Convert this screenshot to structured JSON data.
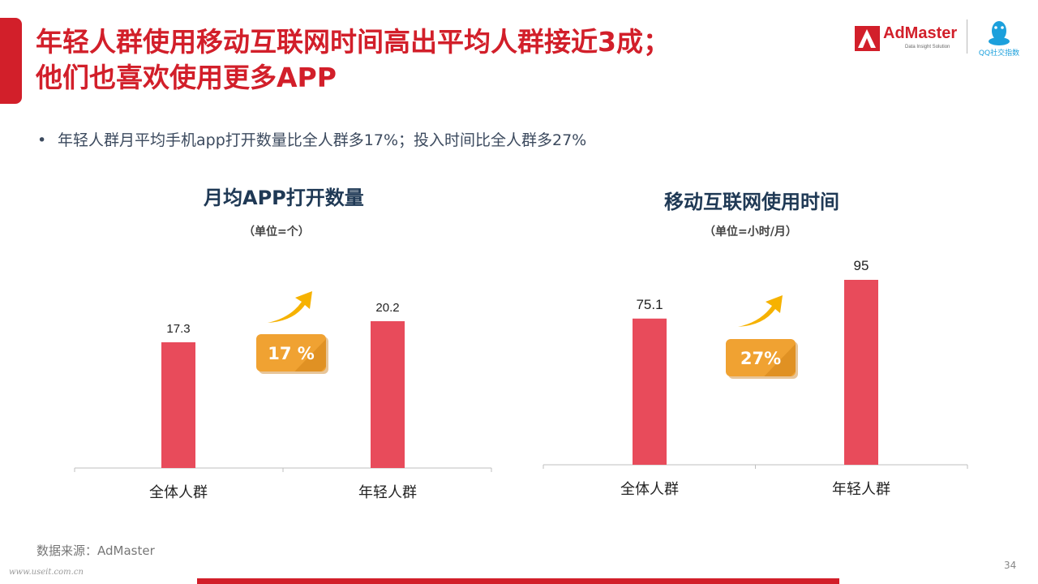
{
  "slide": {
    "title_line1": "年轻人群使用移动互联网时间高出平均人群接近3成；",
    "title_line2": "他们也喜欢使用更多APP",
    "bullet": "年轻人群月平均手机app打开数量比全人群多17%；投入时间比全人群多27%",
    "bullet_marker": "•",
    "source": "数据来源：AdMaster",
    "watermark": "www.useit.com.cn",
    "page_number": "34",
    "accent_color": "#d21f2a",
    "bar_color": "#e84b5b",
    "badge_color": "#f0a232"
  },
  "logos": {
    "admaster": "AdMaster",
    "admaster_tagline": "Data Insight Solution",
    "qq": "QQ社交指数"
  },
  "chart_data": [
    {
      "type": "bar",
      "title": "月均APP打开数量",
      "unit": "（单位=个）",
      "categories": [
        "全体人群",
        "年轻人群"
      ],
      "values": [
        17.3,
        20.2
      ],
      "value_labels": [
        "17.3",
        "20.2"
      ],
      "growth_label": "17 %",
      "ylim": [
        0,
        25
      ]
    },
    {
      "type": "bar",
      "title": "移动互联网使用时间",
      "unit": "（单位=小时/月）",
      "categories": [
        "全体人群",
        "年轻人群"
      ],
      "values": [
        75.1,
        95
      ],
      "value_labels": [
        "75.1",
        "95"
      ],
      "growth_label": "27%",
      "ylim": [
        0,
        120
      ]
    }
  ]
}
